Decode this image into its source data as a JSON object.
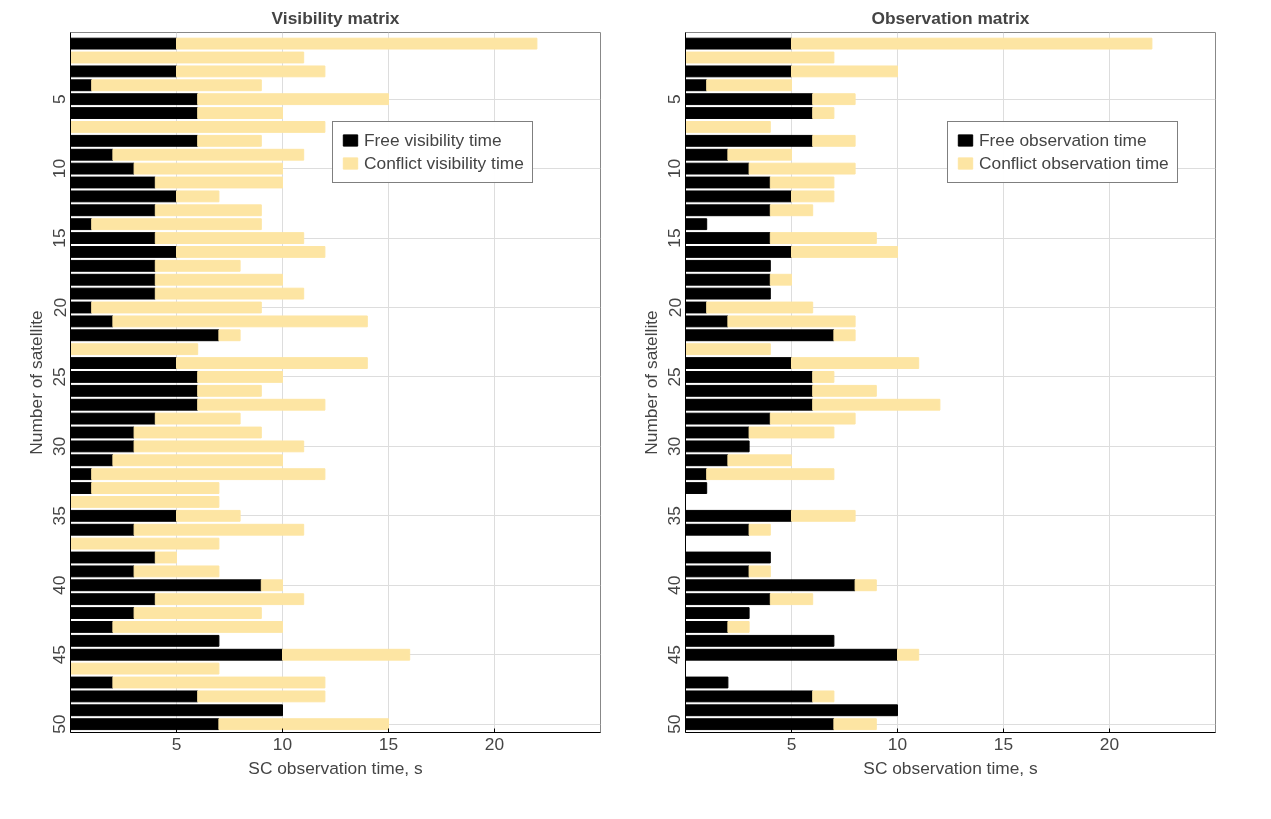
{
  "chart_data": [
    {
      "type": "bar",
      "orientation": "horizontal",
      "stacked": true,
      "title": "Visibility matrix",
      "xlabel": "SC observation time, s",
      "ylabel": "Number of satellite",
      "categories": [
        null,
        null,
        null,
        null,
        "5",
        null,
        null,
        null,
        null,
        "10",
        null,
        null,
        null,
        null,
        "15",
        null,
        null,
        null,
        null,
        "20",
        null,
        null,
        null,
        null,
        "25",
        null,
        null,
        null,
        null,
        "30",
        null,
        null,
        null,
        null,
        "35",
        null,
        null,
        null,
        null,
        "40",
        null,
        null,
        null,
        null,
        "45",
        null,
        null,
        null,
        null,
        "50"
      ],
      "series": [
        {
          "name": "Free visibility time",
          "color": "#000000",
          "values": [
            5,
            0,
            5,
            1,
            6,
            6,
            0,
            6,
            2,
            3,
            4,
            5,
            4,
            1,
            4,
            5,
            4,
            4,
            4,
            1,
            2,
            7,
            0,
            5,
            6,
            6,
            6,
            4,
            3,
            3,
            2,
            1,
            1,
            0,
            5,
            3,
            0,
            4,
            3,
            9,
            4,
            3,
            2,
            7,
            10,
            0,
            2,
            6,
            10,
            7
          ]
        },
        {
          "name": "Conflict visibility time",
          "color": "#fde5a3",
          "values": [
            17,
            11,
            7,
            8,
            9,
            4,
            12,
            3,
            9,
            7,
            6,
            2,
            5,
            8,
            7,
            7,
            4,
            6,
            7,
            8,
            12,
            1,
            6,
            9,
            4,
            3,
            6,
            4,
            6,
            8,
            8,
            11,
            6,
            7,
            3,
            8,
            7,
            1,
            4,
            1,
            7,
            6,
            8,
            null,
            6,
            7,
            10,
            6,
            null,
            8
          ]
        }
      ],
      "xlim": [
        0,
        25
      ],
      "xticks": [
        5,
        10,
        15,
        20
      ],
      "grid": true,
      "legend": "top right"
    },
    {
      "type": "bar",
      "orientation": "horizontal",
      "stacked": true,
      "title": "Observation matrix",
      "xlabel": "SC observation time, s",
      "ylabel": "Number of satellite",
      "categories": [
        null,
        null,
        null,
        null,
        "5",
        null,
        null,
        null,
        null,
        "10",
        null,
        null,
        null,
        null,
        "15",
        null,
        null,
        null,
        null,
        "20",
        null,
        null,
        null,
        null,
        "25",
        null,
        null,
        null,
        null,
        "30",
        null,
        null,
        null,
        null,
        "35",
        null,
        null,
        null,
        null,
        "40",
        null,
        null,
        null,
        null,
        "45",
        null,
        null,
        null,
        null,
        "50"
      ],
      "series": [
        {
          "name": "Free observation time",
          "color": "#000000",
          "values": [
            5,
            0,
            5,
            1,
            6,
            6,
            0,
            6,
            2,
            3,
            4,
            5,
            4,
            1,
            4,
            5,
            4,
            4,
            4,
            1,
            2,
            7,
            0,
            5,
            6,
            6,
            6,
            4,
            3,
            3,
            2,
            1,
            1,
            null,
            5,
            3,
            null,
            4,
            3,
            8,
            4,
            3,
            2,
            7,
            10,
            null,
            2,
            6,
            10,
            7
          ]
        },
        {
          "name": "Conflict observation time",
          "color": "#fde5a3",
          "values": [
            17,
            7,
            5,
            4,
            2,
            1,
            4,
            2,
            3,
            5,
            3,
            2,
            2,
            null,
            5,
            5,
            null,
            1,
            null,
            5,
            6,
            1,
            4,
            6,
            1,
            3,
            6,
            4,
            4,
            null,
            3,
            6,
            null,
            null,
            3,
            1,
            null,
            null,
            1,
            1,
            2,
            null,
            1,
            null,
            1,
            null,
            null,
            1,
            null,
            2
          ]
        }
      ],
      "xlim": [
        0,
        25
      ],
      "xticks": [
        5,
        10,
        15,
        20
      ],
      "grid": true,
      "legend": "top right"
    }
  ]
}
